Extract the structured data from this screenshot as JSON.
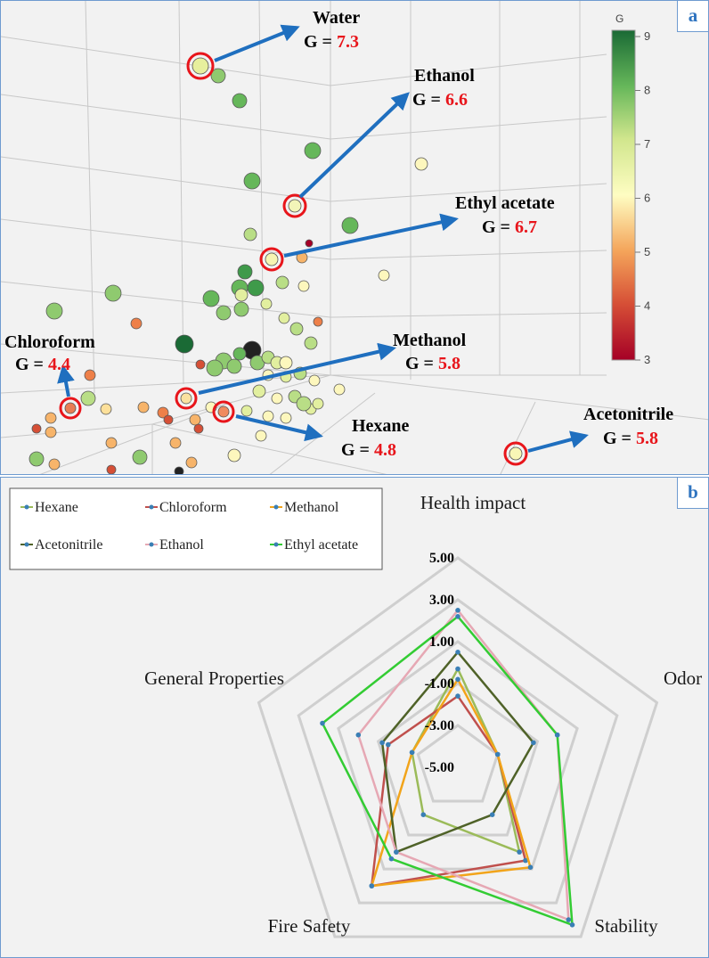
{
  "panels": {
    "a": "a",
    "b": "b"
  },
  "chart_data": [
    {
      "type": "scatter",
      "title": "",
      "colorbar_label": "G",
      "colorbar_ticks": [
        "9",
        "8",
        "7",
        "6",
        "5",
        "4",
        "3"
      ],
      "colorbar_range": [
        3,
        9
      ],
      "colors": {
        "low": "#a50026",
        "mid_low": "#f4a45a",
        "mid": "#fefdc2",
        "mid_high": "#8fca6f",
        "high": "#1a6a35",
        "circle": "#e8151b",
        "arrow": "#1f6fbf",
        "value": "#e8151b"
      },
      "annotations": [
        {
          "name": "Water",
          "prefix": "G = ",
          "value": "7.3"
        },
        {
          "name": "Ethanol",
          "prefix": "G = ",
          "value": "6.6"
        },
        {
          "name": "Ethyl acetate",
          "prefix": "G = ",
          "value": "6.7"
        },
        {
          "name": "Chloroform",
          "prefix": "G = ",
          "value": "4.4"
        },
        {
          "name": "Methanol",
          "prefix": "G = ",
          "value": "5.8"
        },
        {
          "name": "Hexane",
          "prefix": "G = ",
          "value": "4.8"
        },
        {
          "name": "Acetonitrile",
          "prefix": "G = ",
          "value": "5.8"
        }
      ]
    },
    {
      "type": "radar",
      "axes": [
        "Health impact",
        "Odor",
        "Stability",
        "Fire Safety",
        "General Properties"
      ],
      "radial_ticks": [
        "5.00",
        "3.00",
        "1.00",
        "-1.00",
        "-3.00",
        "-5.00"
      ],
      "radial_range": [
        -5,
        5
      ],
      "legend_position": "top-left",
      "series": [
        {
          "name": "Hexane",
          "color": "#9bbb59",
          "values": [
            -0.3,
            -3.0,
            0.0,
            -2.2,
            -2.7
          ]
        },
        {
          "name": "Chloroform",
          "color": "#c0504d",
          "values": [
            -1.6,
            -3.0,
            0.5,
            2.0,
            -1.5
          ]
        },
        {
          "name": "Methanol",
          "color": "#f2a41a",
          "values": [
            -0.8,
            -3.0,
            0.9,
            2.0,
            -2.7
          ]
        },
        {
          "name": "Acetonitrile",
          "color": "#4f6228",
          "values": [
            0.5,
            -1.2,
            -2.2,
            0.0,
            -1.2
          ]
        },
        {
          "name": "Ethanol",
          "color": "#e6a8b4",
          "values": [
            2.5,
            0.0,
            4.0,
            0.0,
            0.0
          ]
        },
        {
          "name": "Ethyl acetate",
          "color": "#33cc33",
          "values": [
            2.2,
            0.0,
            4.3,
            0.4,
            1.8
          ]
        }
      ]
    }
  ]
}
